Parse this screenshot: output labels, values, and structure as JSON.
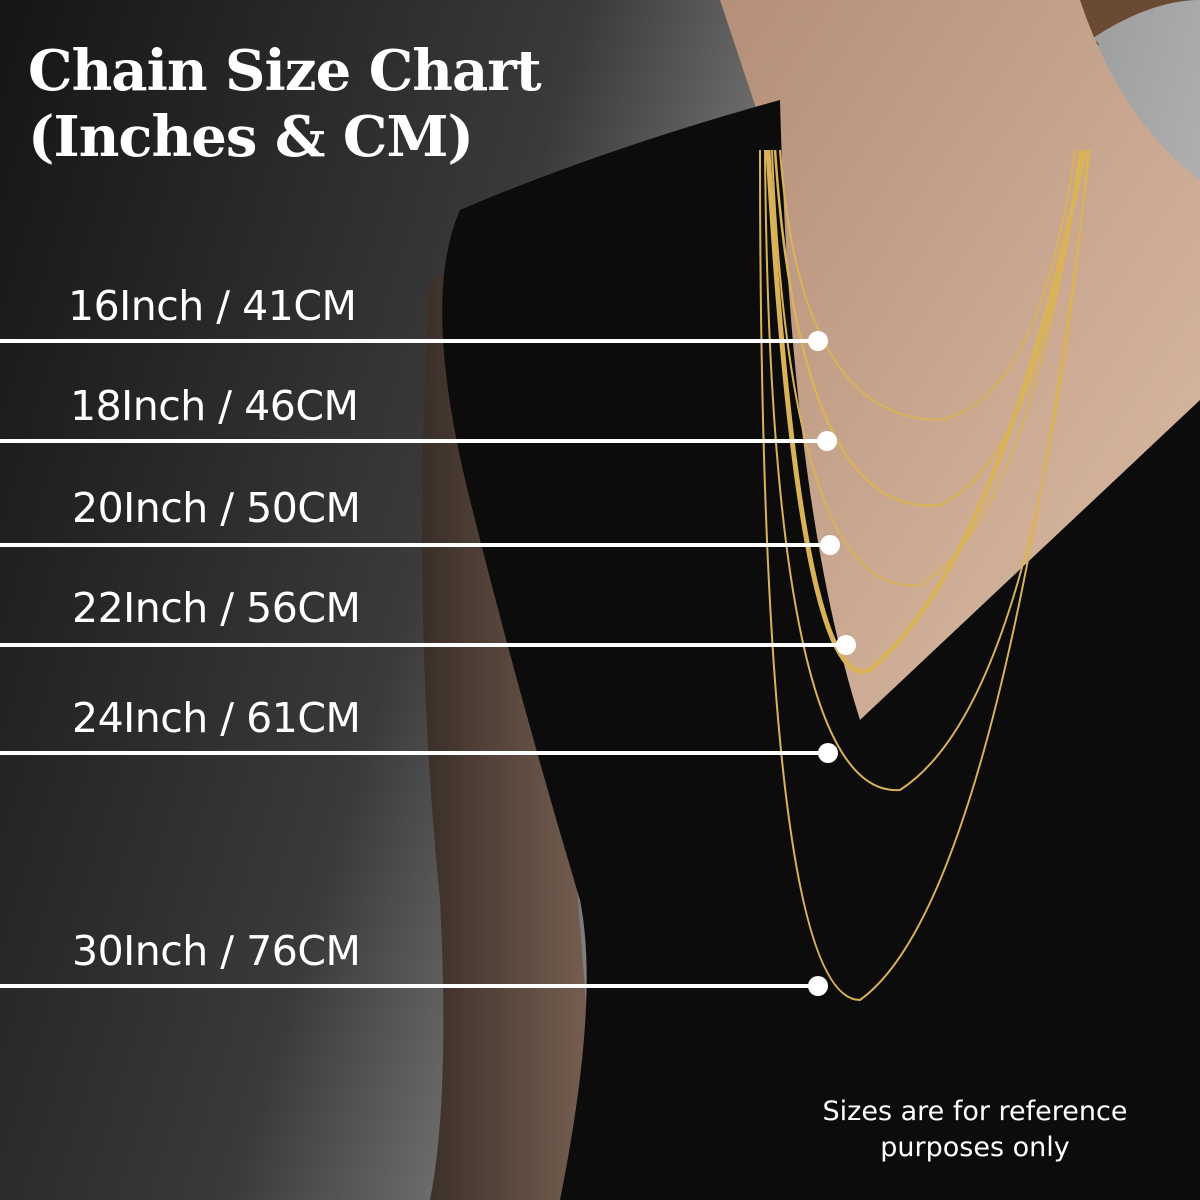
{
  "title": {
    "line1": "Chain Size Chart",
    "line2": "(Inches & CM)"
  },
  "sizes": [
    {
      "label": "16Inch / 41CM",
      "inches": 16,
      "cm": 41
    },
    {
      "label": "18Inch / 46CM",
      "inches": 18,
      "cm": 46
    },
    {
      "label": "20Inch / 50CM",
      "inches": 20,
      "cm": 50
    },
    {
      "label": "22Inch / 56CM",
      "inches": 22,
      "cm": 56
    },
    {
      "label": "24Inch / 61CM",
      "inches": 24,
      "cm": 61
    },
    {
      "label": "30Inch / 76CM",
      "inches": 30,
      "cm": 76
    }
  ],
  "note": {
    "line1": "Sizes are for reference",
    "line2": "purposes only"
  },
  "colors": {
    "text": "#ffffff",
    "marker": "#ffffff",
    "chain_gold": "#d9b25a",
    "dress": "#0c0c0c",
    "skin": "#c9a48a"
  }
}
